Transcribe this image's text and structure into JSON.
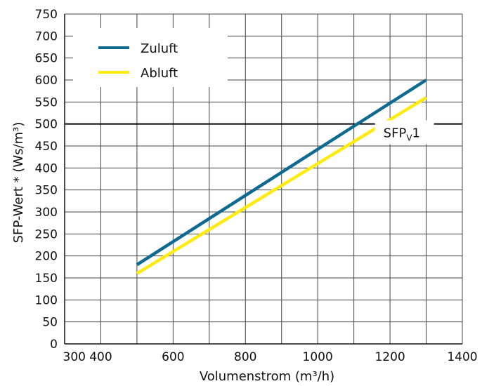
{
  "chart_data": {
    "type": "line",
    "xlabel": "Volumenstrom (m³/h)",
    "ylabel": "SFP-Wert * (Ws/m³)",
    "xlim": [
      300,
      1400
    ],
    "ylim": [
      0,
      750
    ],
    "x_ticks": [
      "300",
      "400",
      "600",
      "800",
      "1000",
      "1200",
      "1400"
    ],
    "y_ticks": [
      "0",
      "50",
      "100",
      "150",
      "200",
      "250",
      "300",
      "350",
      "400",
      "450",
      "500",
      "550",
      "600",
      "650",
      "700",
      "750"
    ],
    "grid": true,
    "legend_position": "top-left",
    "series": [
      {
        "name": "Zuluft",
        "color": "#0f6a92",
        "x": [
          500,
          1300
        ],
        "y": [
          180,
          600
        ]
      },
      {
        "name": "Abluft",
        "color": "#ffeb0f",
        "x": [
          500,
          1300
        ],
        "y": [
          160,
          560
        ]
      }
    ],
    "reference_line": {
      "y": 500,
      "color": "#000000"
    },
    "annotation": {
      "main": "SFP",
      "subscript": "V",
      "suffix": "1",
      "x": 1240,
      "y": 470
    }
  }
}
